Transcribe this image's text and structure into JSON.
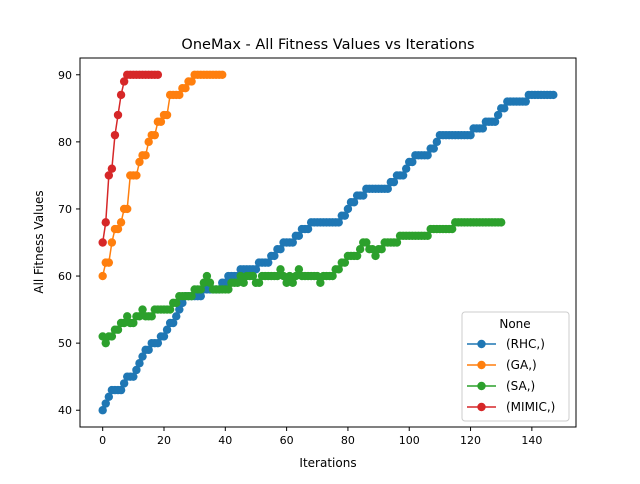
{
  "chart_data": {
    "type": "line",
    "title": "OneMax - All Fitness Values vs Iterations",
    "xlabel": "Iterations",
    "ylabel": "All Fitness Values",
    "xlim": [
      -7.4,
      154.4
    ],
    "ylim": [
      37.5,
      92.5
    ],
    "xticks": [
      0,
      20,
      40,
      60,
      80,
      100,
      120,
      140
    ],
    "yticks": [
      40,
      50,
      60,
      70,
      80,
      90
    ],
    "grid": false,
    "legend": {
      "title": "None",
      "placement": "lower-right",
      "entries": [
        "(RHC,)",
        "(GA,)",
        "(SA,)",
        "(MIMIC,)"
      ]
    },
    "series": [
      {
        "name": "(RHC,)",
        "color": "#1f77b4",
        "y": [
          40,
          41,
          42,
          43,
          43,
          43,
          43,
          44,
          45,
          45,
          45,
          46,
          47,
          48,
          49,
          49,
          50,
          50,
          50,
          51,
          51,
          52,
          53,
          53,
          54,
          55,
          56,
          57,
          57,
          57,
          57,
          57,
          57,
          58,
          58,
          58,
          58,
          58,
          58,
          59,
          59,
          60,
          60,
          60,
          60,
          61,
          61,
          61,
          61,
          61,
          61,
          62,
          62,
          62,
          62,
          63,
          63,
          64,
          64,
          65,
          65,
          65,
          65,
          66,
          66,
          67,
          67,
          67,
          68,
          68,
          68,
          68,
          68,
          68,
          68,
          68,
          68,
          68,
          69,
          69,
          70,
          71,
          71,
          72,
          72,
          72,
          73,
          73,
          73,
          73,
          73,
          73,
          73,
          73,
          74,
          74,
          75,
          75,
          75,
          76,
          77,
          77,
          78,
          78,
          78,
          78,
          78,
          79,
          79,
          80,
          81,
          81,
          81,
          81,
          81,
          81,
          81,
          81,
          81,
          81,
          81,
          82,
          82,
          82,
          82,
          83,
          83,
          83,
          83,
          84,
          85,
          85,
          86,
          86,
          86,
          86,
          86,
          86,
          86,
          87,
          87,
          87,
          87,
          87,
          87,
          87,
          87,
          87
        ]
      },
      {
        "name": "(GA,)",
        "color": "#ff7f0e",
        "y": [
          60,
          62,
          62,
          65,
          67,
          67,
          68,
          70,
          70,
          75,
          75,
          75,
          77,
          78,
          78,
          80,
          81,
          81,
          83,
          83,
          84,
          84,
          87,
          87,
          87,
          87,
          88,
          88,
          89,
          89,
          90,
          90,
          90,
          90,
          90,
          90,
          90,
          90,
          90,
          90
        ]
      },
      {
        "name": "(SA,)",
        "color": "#2ca02c",
        "y": [
          51,
          50,
          51,
          51,
          52,
          52,
          53,
          53,
          54,
          53,
          53,
          54,
          54,
          55,
          54,
          54,
          54,
          55,
          55,
          55,
          55,
          55,
          55,
          56,
          56,
          57,
          57,
          57,
          57,
          57,
          58,
          58,
          58,
          59,
          60,
          59,
          58,
          58,
          58,
          58,
          58,
          58,
          59,
          59,
          59,
          60,
          59,
          60,
          60,
          60,
          59,
          59,
          60,
          60,
          60,
          60,
          60,
          60,
          61,
          60,
          59,
          60,
          59,
          60,
          61,
          60,
          60,
          60,
          60,
          60,
          60,
          59,
          60,
          60,
          60,
          60,
          61,
          61,
          62,
          62,
          63,
          63,
          63,
          63,
          64,
          65,
          65,
          64,
          64,
          63,
          64,
          64,
          65,
          65,
          65,
          65,
          65,
          66,
          66,
          66,
          66,
          66,
          66,
          66,
          66,
          66,
          66,
          67,
          67,
          67,
          67,
          67,
          67,
          67,
          67,
          68,
          68,
          68,
          68,
          68,
          68,
          68,
          68,
          68,
          68,
          68,
          68,
          68,
          68,
          68,
          68
        ]
      },
      {
        "name": "(MIMIC,)",
        "color": "#d62728",
        "y": [
          65,
          68,
          75,
          76,
          81,
          84,
          87,
          89,
          90,
          90,
          90,
          90,
          90,
          90,
          90,
          90,
          90,
          90,
          90
        ]
      }
    ]
  }
}
